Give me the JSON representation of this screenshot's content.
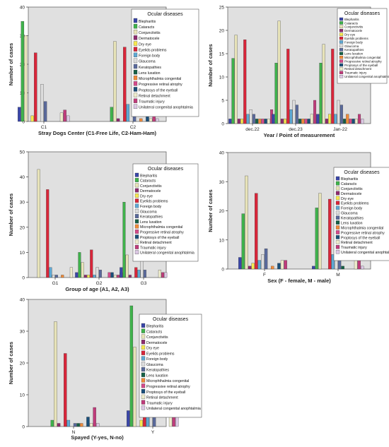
{
  "legend_title": "Ocular diseases",
  "diseases": [
    {
      "name": "Blepharitis",
      "color": "#3a46a8"
    },
    {
      "name": "Cataracts",
      "color": "#3fb24b"
    },
    {
      "name": "Conjunctivitis",
      "color": "#e7e3b8"
    },
    {
      "name": "Dermatocele",
      "color": "#8e2a6e"
    },
    {
      "name": "Dry eye",
      "color": "#f7e850"
    },
    {
      "name": "Eyelids problems",
      "color": "#d9263a"
    },
    {
      "name": "Foreign body",
      "color": "#5fa8d3"
    },
    {
      "name": "Glaucoma",
      "color": "#dddddd"
    },
    {
      "name": "Keratopathies",
      "color": "#5a6a9c"
    },
    {
      "name": "Lens luxation",
      "color": "#166046"
    },
    {
      "name": "Microphthalmia congenital",
      "color": "#f08b3a"
    },
    {
      "name": "Progressive retinal atrophy",
      "color": "#d44b8b"
    },
    {
      "name": "Proptosys of the eyeball",
      "color": "#1a4f7a"
    },
    {
      "name": "Retinal detachment",
      "color": "#eeeccc"
    },
    {
      "name": "Traumatic injury",
      "color": "#c03b7b"
    },
    {
      "name": "Unilateral congenital anophtalmia",
      "color": "#dcc8e4"
    }
  ],
  "chart_data": [
    {
      "type": "bar",
      "xlabel": "Stray Dogs Center (C1-Free Life, C2-Ham-Ham)",
      "ylabel": "Number of cases",
      "ylim": [
        0,
        40
      ],
      "yticks": [
        0,
        10,
        20,
        30,
        40
      ],
      "categories": [
        "C1",
        "C2"
      ],
      "legend_position": "right",
      "series_values": [
        [
          5,
          0
        ],
        [
          35,
          5
        ],
        [
          30,
          28
        ],
        [
          0,
          1
        ],
        [
          2,
          0
        ],
        [
          24,
          26
        ],
        [
          0,
          6
        ],
        [
          13,
          0
        ],
        [
          7,
          3
        ],
        [
          0,
          0
        ],
        [
          0,
          1
        ],
        [
          0,
          0
        ],
        [
          0,
          2
        ],
        [
          3,
          1
        ],
        [
          4,
          6
        ],
        [
          2,
          1
        ]
      ]
    },
    {
      "type": "bar",
      "xlabel": "Year / Point of measurement",
      "ylabel": "Number of cases",
      "ylim": [
        0,
        25
      ],
      "yticks": [
        0,
        5,
        10,
        15,
        20,
        25
      ],
      "categories": [
        "dec.22",
        "dec.23",
        "Jan-22"
      ],
      "legend_position": "right",
      "series_values": [
        [
          1,
          2,
          2
        ],
        [
          14,
          13,
          13
        ],
        [
          19,
          22,
          17
        ],
        [
          1,
          1,
          1
        ],
        [
          1,
          1,
          2
        ],
        [
          18,
          16,
          16
        ],
        [
          2,
          3,
          2
        ],
        [
          3,
          5,
          5
        ],
        [
          2,
          4,
          4
        ],
        [
          1,
          1,
          1
        ],
        [
          1,
          1,
          2
        ],
        [
          1,
          1,
          1
        ],
        [
          1,
          1,
          1
        ],
        [
          1,
          2,
          1
        ],
        [
          3,
          5,
          2
        ],
        [
          1,
          2,
          1
        ]
      ]
    },
    {
      "type": "bar",
      "xlabel": "Group of age (A1, A2, A3)",
      "ylabel": "Number of cases",
      "ylim": [
        0,
        50
      ],
      "yticks": [
        0,
        10,
        20,
        30,
        40,
        50
      ],
      "categories": [
        "G1",
        "G2",
        "G3"
      ],
      "legend_position": "right",
      "series_values": [
        [
          0,
          2,
          4
        ],
        [
          0,
          10,
          30
        ],
        [
          43,
          6,
          9
        ],
        [
          0,
          1,
          1
        ],
        [
          0,
          1,
          0
        ],
        [
          35,
          11,
          4
        ],
        [
          4,
          1,
          3
        ],
        [
          1,
          4,
          8
        ],
        [
          1,
          3,
          3
        ],
        [
          0,
          0,
          0
        ],
        [
          1,
          0,
          0
        ],
        [
          0,
          2,
          0
        ],
        [
          0,
          2,
          0
        ],
        [
          4,
          1,
          3
        ],
        [
          0,
          1,
          2
        ],
        [
          0,
          2,
          2
        ]
      ]
    },
    {
      "type": "bar",
      "xlabel": "Sex (F - female, M - male)",
      "ylabel": "Number of cases",
      "ylim": [
        0,
        40
      ],
      "yticks": [
        0,
        10,
        20,
        30,
        40
      ],
      "categories": [
        "F",
        "M"
      ],
      "legend_position": "top-right",
      "series_values": [
        [
          4,
          1
        ],
        [
          19,
          21
        ],
        [
          32,
          26
        ],
        [
          1,
          0
        ],
        [
          2,
          0
        ],
        [
          26,
          24
        ],
        [
          3,
          5
        ],
        [
          5,
          8
        ],
        [
          7,
          5
        ],
        [
          0,
          1
        ],
        [
          1,
          0
        ],
        [
          0,
          0
        ],
        [
          2,
          0
        ],
        [
          3,
          3
        ],
        [
          3,
          7
        ],
        [
          0,
          1
        ]
      ]
    },
    {
      "type": "bar",
      "xlabel": "Spayed (Y-yes, N-no)",
      "ylabel": "Number of cases",
      "ylim": [
        0,
        40
      ],
      "yticks": [
        0,
        10,
        20,
        30,
        40
      ],
      "categories": [
        "N",
        "Y"
      ],
      "legend_position": "right",
      "series_values": [
        [
          0,
          5
        ],
        [
          2,
          38
        ],
        [
          33,
          25
        ],
        [
          1,
          0
        ],
        [
          0,
          2
        ],
        [
          23,
          27
        ],
        [
          2,
          5
        ],
        [
          0,
          13
        ],
        [
          1,
          7
        ],
        [
          1,
          0
        ],
        [
          1,
          0
        ],
        [
          0,
          0
        ],
        [
          3,
          0
        ],
        [
          1,
          3
        ],
        [
          6,
          4
        ],
        [
          1,
          3
        ]
      ]
    }
  ]
}
